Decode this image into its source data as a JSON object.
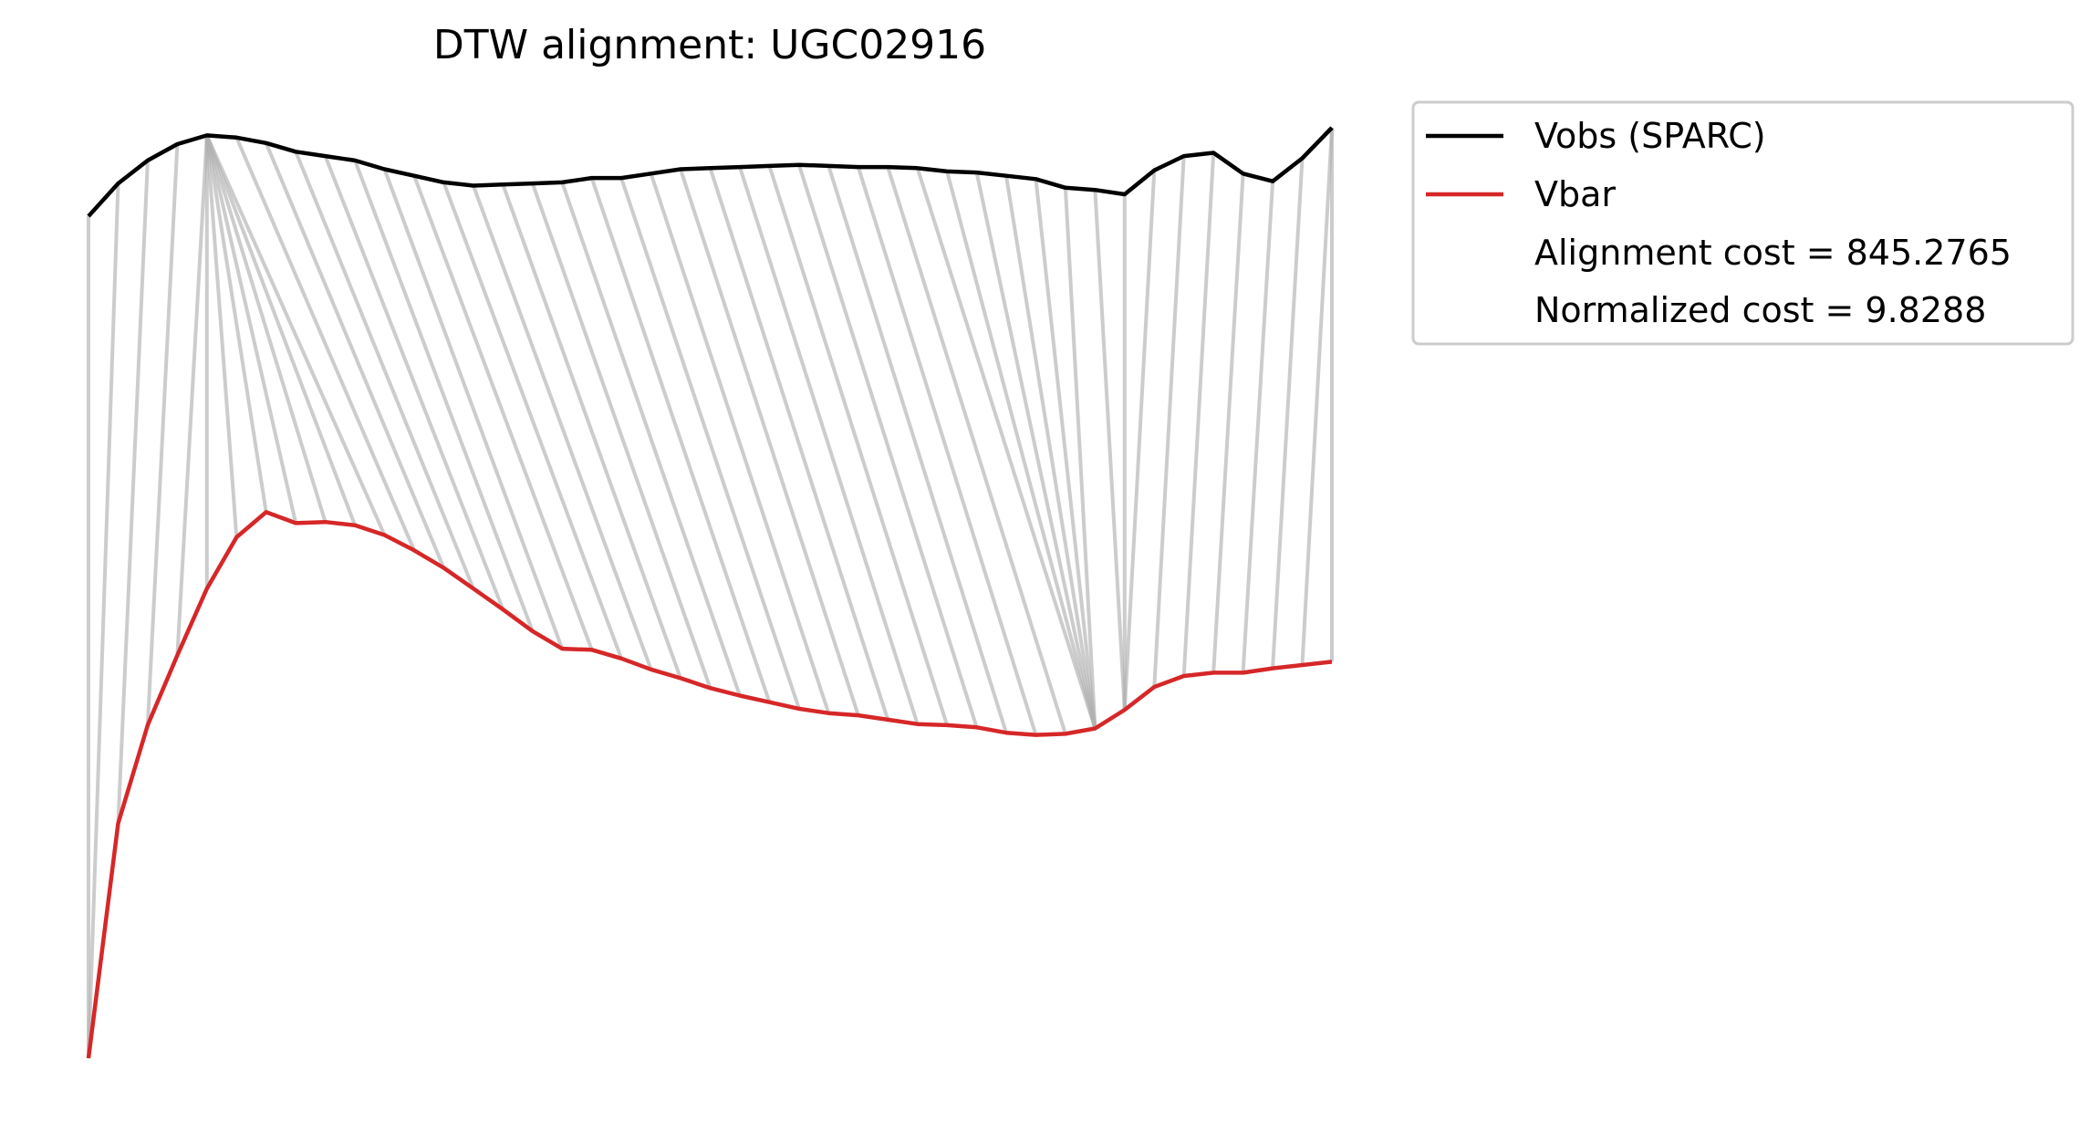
{
  "chart_data": {
    "type": "line",
    "title": "DTW alignment: UGC02916",
    "xlabel": "",
    "ylabel": "",
    "axes_visible": false,
    "grid": false,
    "legend_placement": "outside-top-right",
    "series": [
      {
        "name": "Vobs (SPARC)",
        "color": "#000000",
        "x": [
          0,
          1,
          2,
          3,
          4,
          5,
          6,
          7,
          8,
          9,
          10,
          11,
          12,
          13,
          14,
          15,
          16,
          17,
          18,
          19,
          20,
          21,
          22,
          23,
          24,
          25,
          26,
          27,
          28,
          29,
          30,
          31,
          32,
          33,
          34,
          35,
          36,
          37,
          38,
          39,
          40,
          41,
          42
        ],
        "values": [
          0.771,
          0.801,
          0.822,
          0.837,
          0.845,
          0.843,
          0.838,
          0.83,
          0.826,
          0.822,
          0.814,
          0.808,
          0.802,
          0.799,
          0.8,
          0.801,
          0.802,
          0.806,
          0.806,
          0.81,
          0.814,
          0.815,
          0.816,
          0.817,
          0.818,
          0.817,
          0.816,
          0.816,
          0.815,
          0.812,
          0.811,
          0.808,
          0.805,
          0.797,
          0.795,
          0.791,
          0.813,
          0.826,
          0.829,
          0.81,
          0.803,
          0.824,
          0.852
        ]
      },
      {
        "name": "Vbar",
        "color": "#d62728",
        "x": [
          0,
          1,
          2,
          3,
          4,
          5,
          6,
          7,
          8,
          9,
          10,
          11,
          12,
          13,
          14,
          15,
          16,
          17,
          18,
          19,
          20,
          21,
          22,
          23,
          24,
          25,
          26,
          27,
          28,
          29,
          30,
          31,
          32,
          33,
          34,
          35,
          36,
          37,
          38,
          39,
          40,
          41,
          42
        ],
        "values": [
          0.0,
          0.215,
          0.305,
          0.369,
          0.43,
          0.477,
          0.5,
          0.49,
          0.491,
          0.488,
          0.479,
          0.465,
          0.449,
          0.43,
          0.411,
          0.391,
          0.375,
          0.374,
          0.366,
          0.356,
          0.348,
          0.339,
          0.332,
          0.326,
          0.32,
          0.316,
          0.314,
          0.31,
          0.306,
          0.305,
          0.303,
          0.298,
          0.296,
          0.297,
          0.302,
          0.319,
          0.34,
          0.35,
          0.353,
          0.353,
          0.357,
          0.36,
          0.363
        ]
      }
    ],
    "alignment_path": [
      [
        0,
        0
      ],
      [
        1,
        0
      ],
      [
        2,
        1
      ],
      [
        3,
        2
      ],
      [
        4,
        3
      ],
      [
        4,
        4
      ],
      [
        4,
        5
      ],
      [
        4,
        6
      ],
      [
        4,
        7
      ],
      [
        4,
        8
      ],
      [
        4,
        9
      ],
      [
        4,
        10
      ],
      [
        5,
        11
      ],
      [
        6,
        12
      ],
      [
        7,
        13
      ],
      [
        8,
        14
      ],
      [
        9,
        15
      ],
      [
        10,
        16
      ],
      [
        11,
        17
      ],
      [
        12,
        18
      ],
      [
        13,
        19
      ],
      [
        14,
        20
      ],
      [
        15,
        21
      ],
      [
        16,
        22
      ],
      [
        17,
        23
      ],
      [
        18,
        24
      ],
      [
        19,
        25
      ],
      [
        20,
        26
      ],
      [
        21,
        27
      ],
      [
        22,
        28
      ],
      [
        23,
        29
      ],
      [
        24,
        30
      ],
      [
        25,
        31
      ],
      [
        26,
        32
      ],
      [
        27,
        33
      ],
      [
        28,
        34
      ],
      [
        29,
        34
      ],
      [
        30,
        34
      ],
      [
        31,
        34
      ],
      [
        32,
        34
      ],
      [
        33,
        34
      ],
      [
        34,
        35
      ],
      [
        35,
        35
      ],
      [
        36,
        35
      ],
      [
        37,
        36
      ],
      [
        38,
        37
      ],
      [
        39,
        38
      ],
      [
        40,
        39
      ],
      [
        41,
        40
      ],
      [
        42,
        41
      ],
      [
        42,
        42
      ]
    ],
    "alignment_line_color": "#b0b0b0",
    "legend_extra": [
      "Alignment cost = 845.2765",
      "Normalized cost = 9.8288"
    ]
  }
}
